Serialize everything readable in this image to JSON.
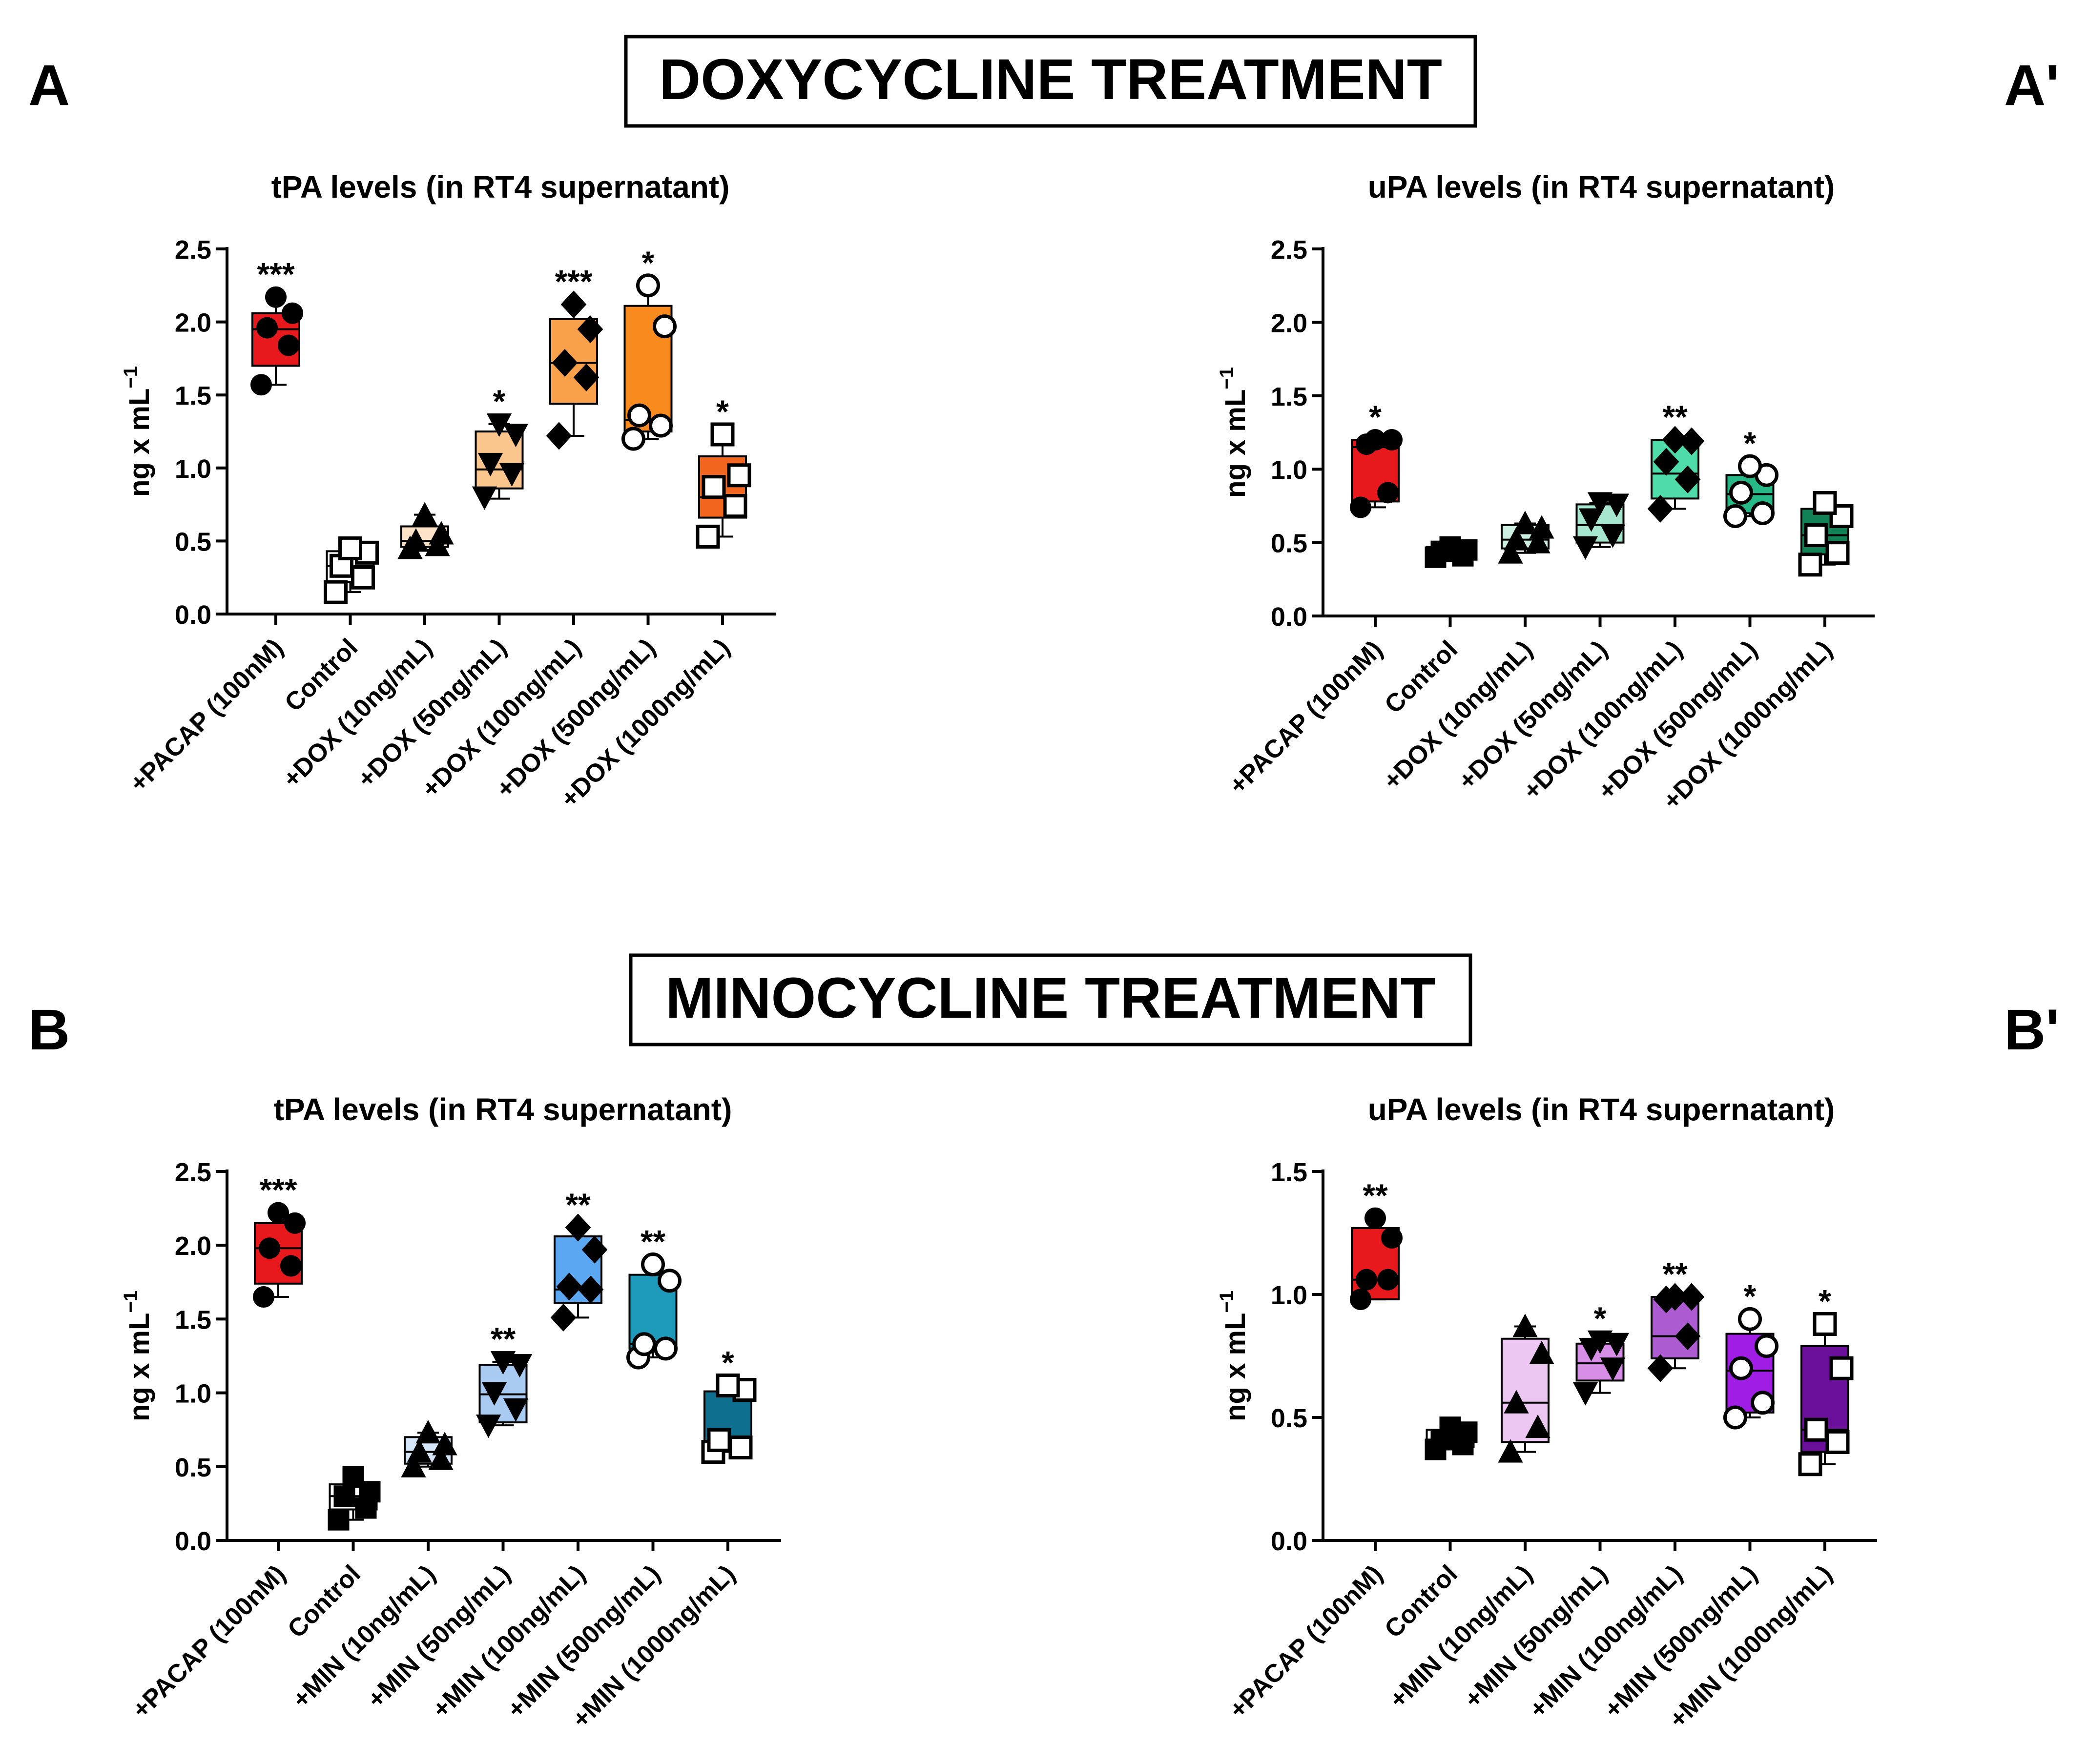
{
  "figure": {
    "headers": [
      {
        "text": "DOXYCYCLINE TREATMENT"
      },
      {
        "text": "MINOCYCLINE TREATMENT"
      }
    ],
    "panel_labels": [
      "A",
      "A'",
      "B",
      "B'"
    ]
  },
  "chart_data": [
    {
      "panel": "A",
      "type": "box",
      "title": "tPA levels (in RT4 supernatant)",
      "ylabel": "ng x mL",
      "ylabel_sup": "−1",
      "ylim": [
        0,
        2.5
      ],
      "yticks": [
        0,
        0.5,
        1,
        1.5,
        2,
        2.5
      ],
      "ytick_labels": [
        "0.0",
        "0.5",
        "1.0",
        "1.5",
        "2.0",
        "2.5"
      ],
      "categories": [
        "+PACAP (100nM)",
        "Control",
        "+DOX (10ng/mL)",
        "+DOX (50ng/mL)",
        "+DOX (100ng/mL)",
        "+DOX (500ng/mL)",
        "+DOX (1000ng/mL)"
      ],
      "colors": [
        "#e8191c",
        "#ffffff",
        "#fde3c7",
        "#fbc58e",
        "#f9a04a",
        "#f98a1e",
        "#f1651f"
      ],
      "markers": [
        "circle",
        "square-open",
        "triangle",
        "triangle-down",
        "diamond",
        "circle-open",
        "square-open"
      ],
      "boxes": [
        {
          "min": 1.57,
          "q1": 1.7,
          "median": 1.95,
          "q3": 2.06,
          "max": 2.17
        },
        {
          "min": 0.15,
          "q1": 0.22,
          "median": 0.33,
          "q3": 0.43,
          "max": 0.46
        },
        {
          "min": 0.44,
          "q1": 0.46,
          "median": 0.5,
          "q3": 0.6,
          "max": 0.68
        },
        {
          "min": 0.79,
          "q1": 0.86,
          "median": 0.99,
          "q3": 1.25,
          "max": 1.3
        },
        {
          "min": 1.22,
          "q1": 1.44,
          "median": 1.72,
          "q3": 2.02,
          "max": 2.12
        },
        {
          "min": 1.2,
          "q1": 1.25,
          "median": 1.33,
          "q3": 2.11,
          "max": 2.25
        },
        {
          "min": 0.53,
          "q1": 0.66,
          "median": 0.8,
          "q3": 1.08,
          "max": 1.23
        }
      ],
      "points": [
        [
          1.57,
          1.84,
          1.96,
          2.06,
          2.17
        ],
        [
          0.15,
          0.25,
          0.33,
          0.42,
          0.45
        ],
        [
          0.45,
          0.47,
          0.5,
          0.55,
          0.68
        ],
        [
          0.8,
          0.96,
          1.03,
          1.23,
          1.3
        ],
        [
          1.22,
          1.62,
          1.72,
          1.95,
          2.12
        ],
        [
          1.2,
          1.29,
          1.36,
          1.97,
          2.25
        ],
        [
          0.53,
          0.74,
          0.87,
          0.95,
          1.23
        ]
      ],
      "significance": [
        "***",
        "",
        "",
        "*",
        "***",
        "*",
        "*"
      ]
    },
    {
      "panel": "A'",
      "type": "box",
      "title": "uPA levels (in RT4 supernatant)",
      "ylabel": "ng x mL",
      "ylabel_sup": "−1",
      "ylim": [
        0,
        2.5
      ],
      "yticks": [
        0,
        0.5,
        1,
        1.5,
        2,
        2.5
      ],
      "ytick_labels": [
        "0.0",
        "0.5",
        "1.0",
        "1.5",
        "2.0",
        "2.5"
      ],
      "categories": [
        "+PACAP (100nM)",
        "Control",
        "+DOX (10ng/mL)",
        "+DOX (50ng/mL)",
        "+DOX (100ng/mL)",
        "+DOX (500ng/mL)",
        "+DOX (1000ng/mL)"
      ],
      "colors": [
        "#e8191c",
        "#ffffff",
        "#cdf0e2",
        "#a7e6cf",
        "#4fdcaa",
        "#26b886",
        "#128256"
      ],
      "markers": [
        "circle",
        "square",
        "triangle",
        "triangle-down",
        "diamond",
        "circle-open",
        "square-open"
      ],
      "boxes": [
        {
          "min": 0.74,
          "q1": 0.78,
          "median": 1.15,
          "q3": 1.2,
          "max": 1.2
        },
        {
          "min": 0.4,
          "q1": 0.41,
          "median": 0.44,
          "q3": 0.47,
          "max": 0.47
        },
        {
          "min": 0.43,
          "q1": 0.46,
          "median": 0.52,
          "q3": 0.62,
          "max": 0.63
        },
        {
          "min": 0.47,
          "q1": 0.5,
          "median": 0.62,
          "q3": 0.76,
          "max": 0.77
        },
        {
          "min": 0.73,
          "q1": 0.8,
          "median": 0.97,
          "q3": 1.2,
          "max": 1.2
        },
        {
          "min": 0.68,
          "q1": 0.7,
          "median": 0.83,
          "q3": 0.96,
          "max": 1.02
        },
        {
          "min": 0.35,
          "q1": 0.42,
          "median": 0.55,
          "q3": 0.73,
          "max": 0.77
        }
      ],
      "points": [
        [
          0.74,
          0.84,
          1.17,
          1.2,
          1.2
        ],
        [
          0.4,
          0.41,
          0.44,
          0.45,
          0.47
        ],
        [
          0.43,
          0.5,
          0.52,
          0.6,
          0.63
        ],
        [
          0.47,
          0.55,
          0.66,
          0.76,
          0.77
        ],
        [
          0.73,
          0.93,
          1.05,
          1.19,
          1.2
        ],
        [
          0.68,
          0.7,
          0.84,
          0.96,
          1.02
        ],
        [
          0.35,
          0.43,
          0.55,
          0.68,
          0.77
        ]
      ],
      "significance": [
        "*",
        "",
        "",
        "",
        "**",
        "*",
        ""
      ]
    },
    {
      "panel": "B",
      "type": "box",
      "title": "tPA levels (in RT4 supernatant)",
      "ylabel": "ng x mL",
      "ylabel_sup": "−1",
      "ylim": [
        0,
        2.5
      ],
      "yticks": [
        0,
        0.5,
        1,
        1.5,
        2,
        2.5
      ],
      "ytick_labels": [
        "0.0",
        "0.5",
        "1.0",
        "1.5",
        "2.0",
        "2.5"
      ],
      "categories": [
        "+PACAP (100nM)",
        "Control",
        "+MIN (10ng/mL)",
        "+MIN (50ng/mL)",
        "+MIN (100ng/mL)",
        "+MIN (500ng/mL)",
        "+MIN (1000ng/mL)"
      ],
      "colors": [
        "#e8191c",
        "#ffffff",
        "#d5e6f9",
        "#a9cbf2",
        "#5ca7f1",
        "#1e9bbb",
        "#0f6f8f"
      ],
      "markers": [
        "circle",
        "square",
        "triangle",
        "triangle-down",
        "diamond",
        "circle-open",
        "square-open"
      ],
      "boxes": [
        {
          "min": 1.65,
          "q1": 1.74,
          "median": 1.98,
          "q3": 2.15,
          "max": 2.22
        },
        {
          "min": 0.14,
          "q1": 0.21,
          "median": 0.3,
          "q3": 0.38,
          "max": 0.43
        },
        {
          "min": 0.5,
          "q1": 0.52,
          "median": 0.6,
          "q3": 0.7,
          "max": 0.73
        },
        {
          "min": 0.78,
          "q1": 0.8,
          "median": 0.99,
          "q3": 1.19,
          "max": 1.21
        },
        {
          "min": 1.51,
          "q1": 1.61,
          "median": 1.7,
          "q3": 2.06,
          "max": 2.12
        },
        {
          "min": 1.24,
          "q1": 1.3,
          "median": 1.33,
          "q3": 1.8,
          "max": 1.87
        },
        {
          "min": 0.6,
          "q1": 0.62,
          "median": 0.66,
          "q3": 1.01,
          "max": 1.05
        }
      ],
      "points": [
        [
          1.65,
          1.86,
          1.98,
          2.15,
          2.22
        ],
        [
          0.14,
          0.22,
          0.3,
          0.33,
          0.43
        ],
        [
          0.5,
          0.55,
          0.6,
          0.65,
          0.73
        ],
        [
          0.78,
          0.89,
          1.0,
          1.19,
          1.21
        ],
        [
          1.51,
          1.7,
          1.72,
          1.97,
          2.12
        ],
        [
          1.24,
          1.3,
          1.33,
          1.76,
          1.87
        ],
        [
          0.6,
          0.63,
          0.68,
          1.02,
          1.05
        ]
      ],
      "significance": [
        "***",
        "",
        "",
        "**",
        "**",
        "**",
        "*"
      ]
    },
    {
      "panel": "B'",
      "type": "box",
      "title": "uPA levels (in RT4 supernatant)",
      "ylabel": "ng x mL",
      "ylabel_sup": "−1",
      "ylim": [
        0,
        1.5
      ],
      "yticks": [
        0,
        0.5,
        1,
        1.5
      ],
      "ytick_labels": [
        "0.0",
        "0.5",
        "1.0",
        "1.5"
      ],
      "categories": [
        "+PACAP (100nM)",
        "Control",
        "+MIN (10ng/mL)",
        "+MIN (50ng/mL)",
        "+MIN (100ng/mL)",
        "+MIN (500ng/mL)",
        "+MIN (1000ng/mL)"
      ],
      "colors": [
        "#e8191c",
        "#ffffff",
        "#ecc7f1",
        "#d68ee6",
        "#ad5bd0",
        "#a01de6",
        "#6a109a"
      ],
      "markers": [
        "circle",
        "square",
        "triangle",
        "triangle-down",
        "diamond",
        "circle-open",
        "square-open"
      ],
      "boxes": [
        {
          "min": 0.98,
          "q1": 0.98,
          "median": 1.06,
          "q3": 1.27,
          "max": 1.31
        },
        {
          "min": 0.37,
          "q1": 0.38,
          "median": 0.41,
          "q3": 0.45,
          "max": 0.46
        },
        {
          "min": 0.36,
          "q1": 0.4,
          "median": 0.56,
          "q3": 0.82,
          "max": 0.87
        },
        {
          "min": 0.6,
          "q1": 0.65,
          "median": 0.72,
          "q3": 0.8,
          "max": 0.81
        },
        {
          "min": 0.7,
          "q1": 0.74,
          "median": 0.83,
          "q3": 0.99,
          "max": 0.99
        },
        {
          "min": 0.5,
          "q1": 0.52,
          "median": 0.69,
          "q3": 0.84,
          "max": 0.9
        },
        {
          "min": 0.31,
          "q1": 0.36,
          "median": 0.45,
          "q3": 0.79,
          "max": 0.88
        }
      ],
      "points": [
        [
          0.98,
          1.06,
          1.06,
          1.23,
          1.31
        ],
        [
          0.37,
          0.39,
          0.41,
          0.44,
          0.46
        ],
        [
          0.36,
          0.46,
          0.56,
          0.76,
          0.87
        ],
        [
          0.6,
          0.7,
          0.78,
          0.8,
          0.81
        ],
        [
          0.7,
          0.83,
          0.98,
          0.99,
          0.99
        ],
        [
          0.5,
          0.56,
          0.7,
          0.79,
          0.9
        ],
        [
          0.31,
          0.4,
          0.45,
          0.7,
          0.88
        ]
      ],
      "significance": [
        "**",
        "",
        "",
        "*",
        "**",
        "*",
        "*"
      ]
    }
  ]
}
